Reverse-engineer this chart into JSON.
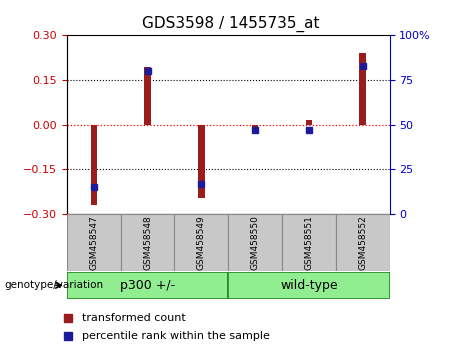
{
  "title": "GDS3598 / 1455735_at",
  "samples": [
    "GSM458547",
    "GSM458548",
    "GSM458549",
    "GSM458550",
    "GSM458551",
    "GSM458552"
  ],
  "red_values": [
    -0.27,
    0.195,
    -0.245,
    -0.02,
    0.015,
    0.24
  ],
  "blue_values_pct": [
    15,
    80,
    17,
    47,
    47,
    83
  ],
  "ylim_left": [
    -0.3,
    0.3
  ],
  "ylim_right": [
    0,
    100
  ],
  "yticks_left": [
    -0.3,
    -0.15,
    0,
    0.15,
    0.3
  ],
  "yticks_right": [
    0,
    25,
    50,
    75,
    100
  ],
  "group1_label": "p300 +/-",
  "group2_label": "wild-type",
  "xlabel_footer": "genotype/variation",
  "legend_red": "transformed count",
  "legend_blue": "percentile rank within the sample",
  "bar_width": 0.12,
  "bar_color": "#9B1C1C",
  "blue_color": "#1C1C9B",
  "group_color": "#90EE90",
  "group_edge_color": "#228B22",
  "sample_box_color": "#C8C8C8",
  "title_fontsize": 11,
  "tick_fontsize": 8,
  "left_tick_color": "#CC0000",
  "right_tick_color": "#0000CC",
  "legend_fontsize": 8
}
